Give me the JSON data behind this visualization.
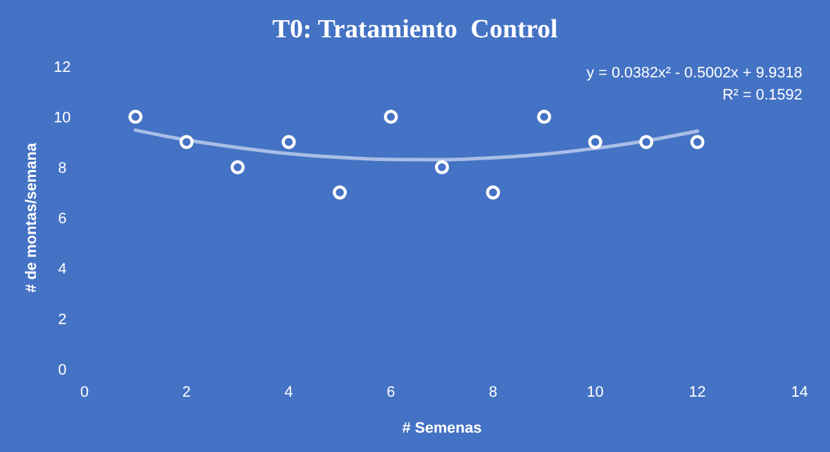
{
  "chart_data": {
    "type": "scatter",
    "title": "T0: Tratamiento  Control",
    "xlabel": "# Semenas",
    "ylabel": "# de montas/semana",
    "xlim": [
      0,
      14
    ],
    "xticks": [
      0,
      2,
      4,
      6,
      8,
      10,
      12,
      14
    ],
    "ylim": [
      0,
      12
    ],
    "yticks": [
      0,
      2,
      4,
      6,
      8,
      10,
      12
    ],
    "series": [
      {
        "marker": "circle",
        "color": "#ffffff",
        "x": [
          1,
          2,
          3,
          4,
          5,
          6,
          7,
          8,
          9,
          10,
          11,
          12
        ],
        "values": [
          10,
          9,
          8,
          9,
          7,
          10,
          8,
          7,
          10,
          9,
          9,
          9
        ]
      },
      {
        "type": "line",
        "color": "#a9bde6",
        "x": [
          1,
          2,
          3,
          4,
          5,
          6,
          7,
          8,
          9,
          10,
          11,
          12
        ],
        "values": [
          9.47,
          9.08,
          8.78,
          8.54,
          8.39,
          8.31,
          8.3,
          8.38,
          8.52,
          8.75,
          9.05,
          9.43
        ]
      }
    ],
    "annotations": [
      "y = 0.0382x² - 0.5002x + 9.9318",
      "R² = 0.1592"
    ]
  }
}
